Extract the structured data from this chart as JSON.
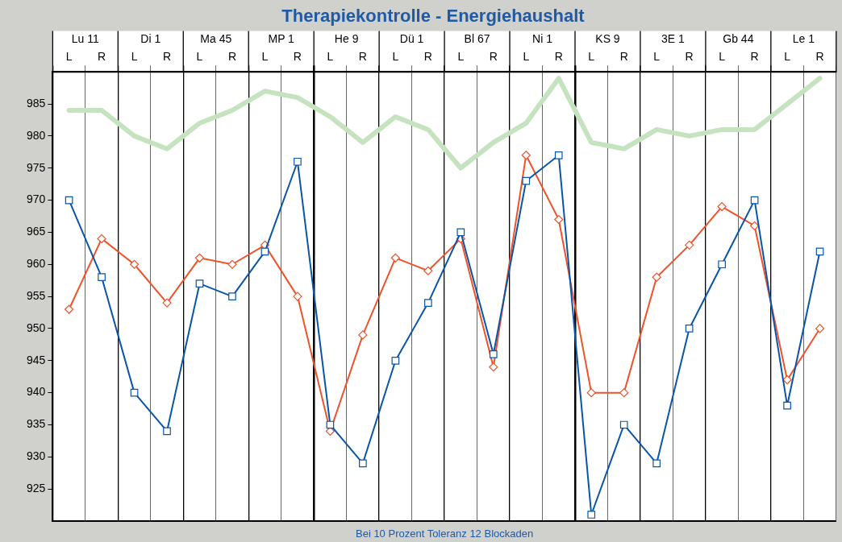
{
  "chart_data": {
    "type": "line",
    "title": "Therapiekontrolle - Energiehaushalt",
    "categories": [
      "L",
      "R",
      "L",
      "R",
      "L",
      "R",
      "L",
      "R",
      "L",
      "R",
      "L",
      "R",
      "L",
      "R",
      "L",
      "R",
      "L",
      "R",
      "L",
      "R",
      "L",
      "R",
      "L",
      "R"
    ],
    "annotations": [
      "Lu 11",
      "Di 1",
      "Ma 45",
      "MP 1",
      "He 9",
      "Dü 1",
      "Bl 67",
      "Ni 1",
      "KS 9",
      "3E 1",
      "Gb 44",
      "Le 1",
      "Bei 10 Prozent Toleranz 12 Blockaden"
    ],
    "series": [
      {
        "color": "#c5e3bf",
        "marker": "none",
        "values": [
          984,
          984,
          980,
          978,
          982,
          984,
          987,
          986,
          983,
          979,
          983,
          981,
          975,
          979,
          982,
          989,
          979,
          978,
          981,
          980,
          981,
          981,
          985,
          989
        ]
      },
      {
        "color": "#f0522a",
        "marker": "diamond",
        "values": [
          953,
          964,
          960,
          954,
          961,
          960,
          963,
          955,
          934,
          949,
          961,
          959,
          964,
          944,
          977,
          967,
          940,
          940,
          958,
          963,
          969,
          966,
          942,
          950
        ]
      },
      {
        "color": "#0b55a8",
        "marker": "square",
        "values": [
          970,
          958,
          940,
          934,
          957,
          955,
          962,
          976,
          935,
          929,
          945,
          954,
          965,
          946,
          973,
          977,
          921,
          935,
          929,
          950,
          960,
          970,
          938,
          962
        ]
      }
    ],
    "ylim": [
      920,
      990
    ],
    "yticks": [
      925,
      930,
      935,
      940,
      945,
      950,
      955,
      960,
      965,
      970,
      975,
      980,
      985
    ],
    "grid": "x",
    "legend": false
  }
}
